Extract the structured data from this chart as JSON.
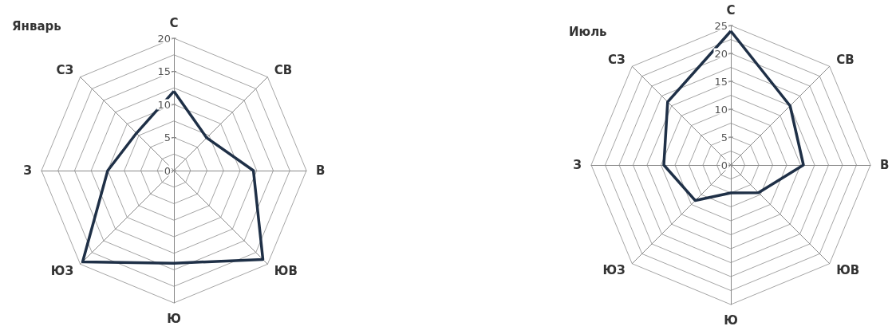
{
  "chart_data": [
    {
      "type": "radar",
      "title": "Январь",
      "categories": [
        "С",
        "СВ",
        "В",
        "ЮВ",
        "Ю",
        "ЮЗ",
        "З",
        "СЗ"
      ],
      "series": [
        {
          "color": "#1f3047",
          "values": [
            12,
            7,
            12,
            19,
            14,
            19.5,
            10,
            8
          ]
        }
      ],
      "ylim": [
        0,
        20
      ],
      "yticks": [
        0,
        5,
        10,
        15,
        20
      ],
      "grid": true,
      "marker": "none",
      "legend": false
    },
    {
      "type": "radar",
      "title": "Июль",
      "categories": [
        "С",
        "СВ",
        "В",
        "ЮВ",
        "Ю",
        "ЮЗ",
        "З",
        "СЗ"
      ],
      "series": [
        {
          "color": "#1f3047",
          "values": [
            24,
            15,
            13,
            7,
            5,
            9,
            12,
            16
          ]
        }
      ],
      "ylim": [
        0,
        25
      ],
      "yticks": [
        0,
        5,
        10,
        15,
        20,
        25
      ],
      "grid": true,
      "marker": "none",
      "legend": false
    }
  ]
}
